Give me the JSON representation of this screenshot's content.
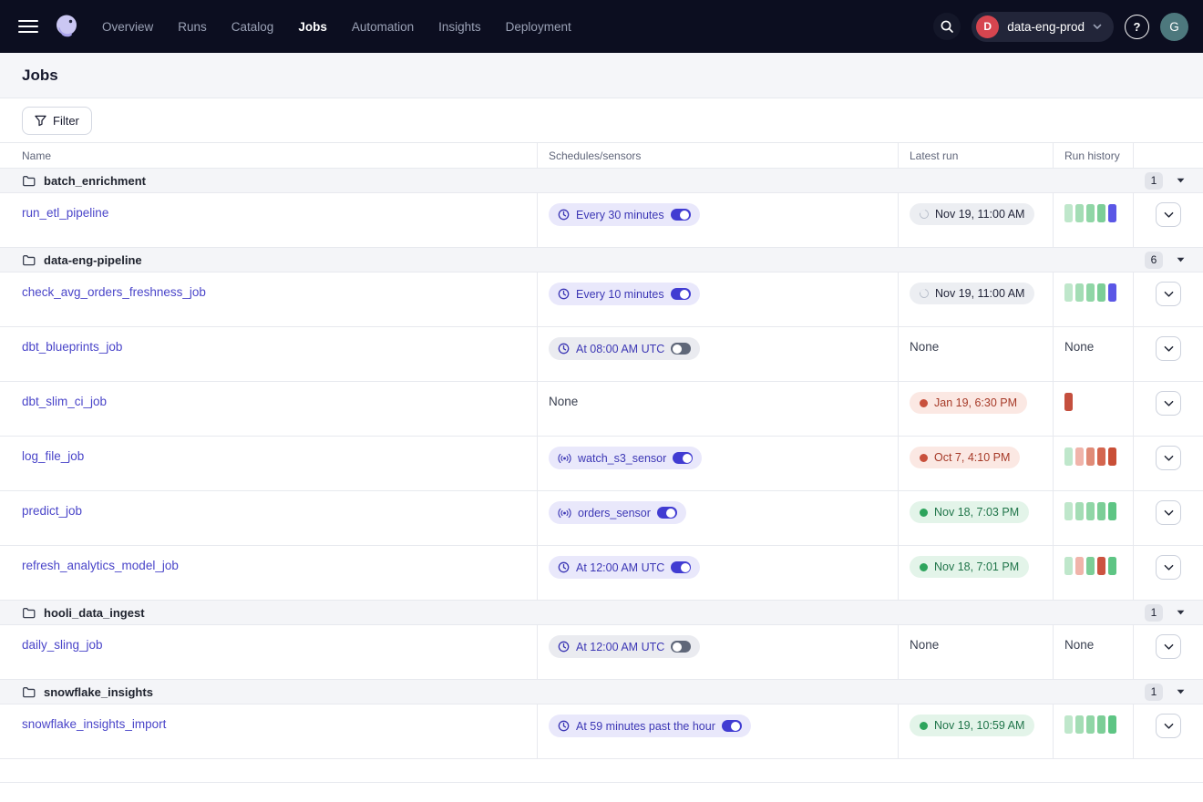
{
  "nav": {
    "items": [
      {
        "label": "Overview",
        "active": false
      },
      {
        "label": "Runs",
        "active": false
      },
      {
        "label": "Catalog",
        "active": false
      },
      {
        "label": "Jobs",
        "active": true
      },
      {
        "label": "Automation",
        "active": false
      },
      {
        "label": "Insights",
        "active": false
      },
      {
        "label": "Deployment",
        "active": false
      }
    ],
    "deployment": {
      "initial": "D",
      "label": "data-eng-prod"
    },
    "help_label": "?",
    "avatar_initial": "G"
  },
  "page": {
    "title": "Jobs",
    "filter_label": "Filter"
  },
  "icons": {
    "menu": "hamburger-icon",
    "logo": "dagster-octopus-logo",
    "search": "search-icon",
    "help": "question-mark-icon",
    "folder": "folder-icon",
    "clock": "clock-icon",
    "sensor": "sensor-waves-icon",
    "caret": "caret-down-icon",
    "chevron": "chevron-down-icon"
  },
  "colors": {
    "accent_link": "#4a45c9",
    "badge_on_bg": "#e9e8fb",
    "badge_off_bg": "#eaebf0",
    "toggle_on": "#413cd2",
    "success": "#2da45c",
    "failure": "#c8503c",
    "in_progress_bar": "#5b57e6",
    "nav_bg": "#0c0e20"
  },
  "table": {
    "columns": [
      "Name",
      "Schedules/sensors",
      "Latest run",
      "Run history"
    ],
    "none_label": "None",
    "groups": [
      {
        "name": "batch_enrichment",
        "count": "1",
        "jobs": [
          {
            "name": "run_etl_pipeline",
            "schedule": {
              "type": "clock",
              "label": "Every 30 minutes",
              "enabled": true
            },
            "latest_run": {
              "status": "in_progress",
              "label": "Nov 19, 11:00 AM"
            },
            "history": [
              "#bfe7cb",
              "#a4ddb5",
              "#90d6a6",
              "#7cce97",
              "#5b57e6"
            ]
          }
        ]
      },
      {
        "name": "data-eng-pipeline",
        "count": "6",
        "jobs": [
          {
            "name": "check_avg_orders_freshness_job",
            "schedule": {
              "type": "clock",
              "label": "Every 10 minutes",
              "enabled": true
            },
            "latest_run": {
              "status": "in_progress",
              "label": "Nov 19, 11:00 AM"
            },
            "history": [
              "#bfe7cb",
              "#a4ddb5",
              "#90d6a6",
              "#7cce97",
              "#5b57e6"
            ]
          },
          {
            "name": "dbt_blueprints_job",
            "schedule": {
              "type": "clock",
              "label": "At 08:00 AM UTC",
              "enabled": false
            },
            "latest_run": null,
            "history": null
          },
          {
            "name": "dbt_slim_ci_job",
            "schedule": null,
            "latest_run": {
              "status": "failure",
              "label": "Jan 19, 6:30 PM"
            },
            "history": [
              "#c44f3e"
            ]
          },
          {
            "name": "log_file_job",
            "schedule": {
              "type": "sensor",
              "label": "watch_s3_sensor",
              "enabled": true
            },
            "latest_run": {
              "status": "failure",
              "label": "Oct 7, 4:10 PM"
            },
            "history": [
              "#bfe7cb",
              "#f0b4aa",
              "#e08b77",
              "#d4664f",
              "#c94f37"
            ]
          },
          {
            "name": "predict_job",
            "schedule": {
              "type": "sensor",
              "label": "orders_sensor",
              "enabled": true
            },
            "latest_run": {
              "status": "success",
              "label": "Nov 18, 7:03 PM"
            },
            "history": [
              "#bfe7cb",
              "#a4ddb5",
              "#90d6a6",
              "#7cce97",
              "#5ec584"
            ]
          },
          {
            "name": "refresh_analytics_model_job",
            "schedule": {
              "type": "clock",
              "label": "At 12:00 AM UTC",
              "enabled": true
            },
            "latest_run": {
              "status": "success",
              "label": "Nov 18, 7:01 PM"
            },
            "history": [
              "#bfe7cb",
              "#f0b4aa",
              "#7cce97",
              "#cc5340",
              "#5ec584"
            ]
          }
        ]
      },
      {
        "name": "hooli_data_ingest",
        "count": "1",
        "jobs": [
          {
            "name": "daily_sling_job",
            "schedule": {
              "type": "clock",
              "label": "At 12:00 AM UTC",
              "enabled": false
            },
            "latest_run": null,
            "history": null
          }
        ]
      },
      {
        "name": "snowflake_insights",
        "count": "1",
        "jobs": [
          {
            "name": "snowflake_insights_import",
            "schedule": {
              "type": "clock",
              "label": "At 59 minutes past the hour",
              "enabled": true
            },
            "latest_run": {
              "status": "success",
              "label": "Nov 19, 10:59 AM"
            },
            "history": [
              "#bfe7cb",
              "#a4ddb5",
              "#90d6a6",
              "#7cce97",
              "#5ec584"
            ]
          }
        ]
      }
    ]
  }
}
